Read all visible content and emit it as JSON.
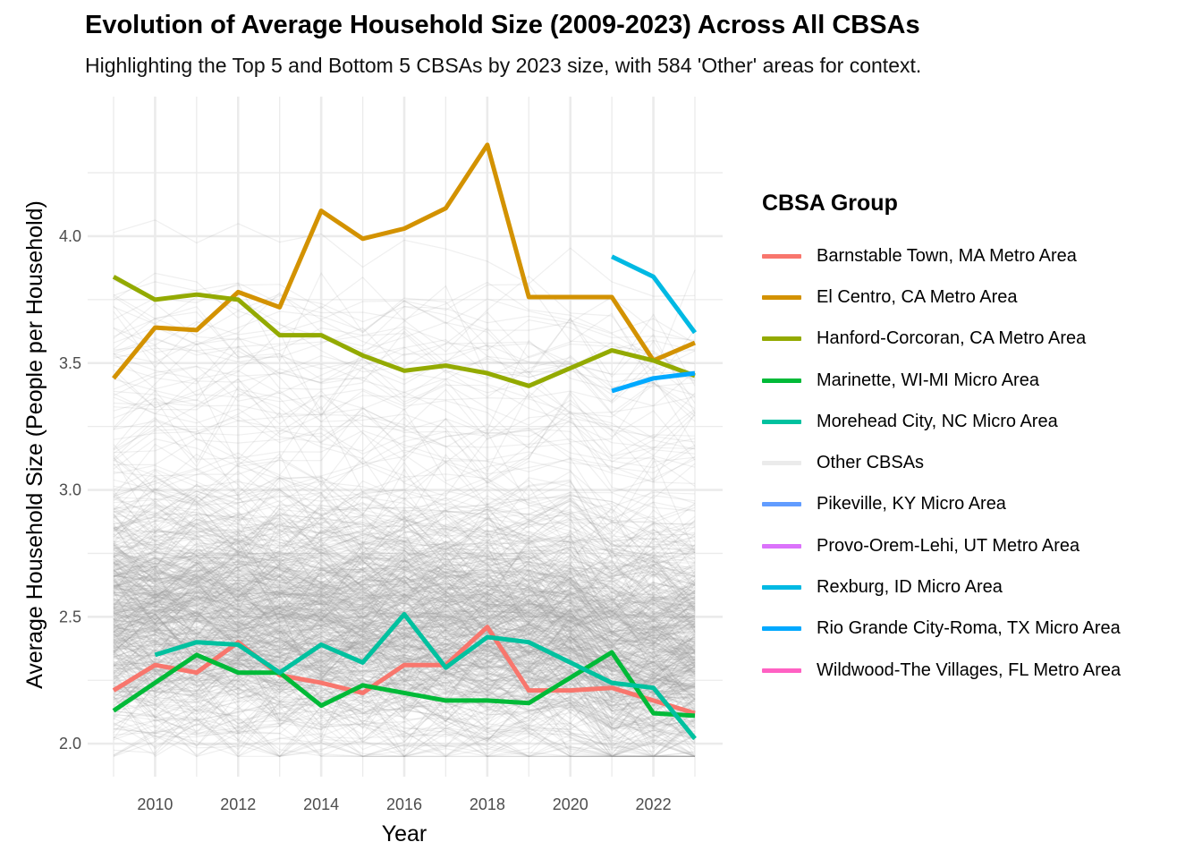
{
  "chart_data": {
    "type": "line",
    "title": "Evolution of Average Household Size (2009-2023) Across All CBSAs",
    "subtitle": "Highlighting the Top 5 and Bottom 5 CBSAs by 2023 size, with 584 'Other' areas for context.",
    "xlabel": "Year",
    "ylabel": "Average Household Size (People per Household)",
    "xlim": [
      2009,
      2023
    ],
    "ylim": [
      1.87,
      4.55
    ],
    "x_ticks": [
      2010,
      2012,
      2014,
      2016,
      2018,
      2020,
      2022
    ],
    "y_ticks": [
      2.0,
      2.5,
      3.0,
      3.5,
      4.0
    ],
    "y_tick_labels": [
      "2.0",
      "2.5",
      "3.0",
      "3.5",
      "4.0"
    ],
    "grid": true,
    "legend": {
      "title": "CBSA Group",
      "position": "right",
      "items": [
        {
          "name": "Barnstable Town, MA Metro Area",
          "color": "#F8766D"
        },
        {
          "name": "El Centro, CA Metro Area",
          "color": "#D39200"
        },
        {
          "name": "Hanford-Corcoran, CA Metro Area",
          "color": "#93AA00"
        },
        {
          "name": "Marinette, WI-MI Micro Area",
          "color": "#00BA38"
        },
        {
          "name": "Morehead City, NC Micro Area",
          "color": "#00C19F"
        },
        {
          "name": "Other CBSAs",
          "color": "#EBEBEB"
        },
        {
          "name": "Pikeville, KY Micro Area",
          "color": "#619CFF"
        },
        {
          "name": "Provo-Orem-Lehi, UT Metro Area",
          "color": "#DB72FB"
        },
        {
          "name": "Rexburg, ID Micro Area",
          "color": "#00B9E3"
        },
        {
          "name": "Rio Grande City-Roma, TX Micro Area",
          "color": "#00A9FF"
        },
        {
          "name": "Wildwood-The Villages, FL Metro Area",
          "color": "#FF61C3"
        }
      ]
    },
    "other_series": {
      "name": "Other CBSAs",
      "count": 584,
      "color": "#9a9a9a"
    },
    "series": [
      {
        "name": "Barnstable Town, MA Metro Area",
        "color": "#F8766D",
        "x": [
          2009,
          2010,
          2011,
          2012,
          2013,
          2014,
          2015,
          2016,
          2017,
          2018,
          2019,
          2020,
          2021,
          2022,
          2023
        ],
        "y": [
          2.21,
          2.31,
          2.28,
          2.4,
          2.27,
          2.24,
          2.2,
          2.31,
          2.31,
          2.46,
          2.21,
          2.21,
          2.22,
          2.17,
          2.12
        ]
      },
      {
        "name": "El Centro, CA Metro Area",
        "color": "#D39200",
        "x": [
          2009,
          2010,
          2011,
          2012,
          2013,
          2014,
          2015,
          2016,
          2017,
          2018,
          2019,
          2020,
          2021,
          2022,
          2023
        ],
        "y": [
          3.44,
          3.64,
          3.63,
          3.78,
          3.72,
          4.1,
          3.99,
          4.03,
          4.11,
          4.36,
          3.76,
          3.76,
          3.76,
          3.51,
          3.58
        ]
      },
      {
        "name": "Hanford-Corcoran, CA Metro Area",
        "color": "#93AA00",
        "x": [
          2009,
          2010,
          2011,
          2012,
          2013,
          2014,
          2015,
          2016,
          2017,
          2018,
          2019,
          2020,
          2021,
          2022,
          2023
        ],
        "y": [
          3.84,
          3.75,
          3.77,
          3.75,
          3.61,
          3.61,
          3.53,
          3.47,
          3.49,
          3.46,
          3.41,
          3.48,
          3.55,
          3.51,
          3.45
        ]
      },
      {
        "name": "Marinette, WI-MI Micro Area",
        "color": "#00BA38",
        "x": [
          2009,
          2010,
          2011,
          2012,
          2013,
          2014,
          2015,
          2016,
          2017,
          2018,
          2019,
          2020,
          2021,
          2022,
          2023
        ],
        "y": [
          2.13,
          2.24,
          2.35,
          2.28,
          2.28,
          2.15,
          2.23,
          2.2,
          2.17,
          2.17,
          2.16,
          2.26,
          2.36,
          2.12,
          2.11
        ]
      },
      {
        "name": "Morehead City, NC Micro Area",
        "color": "#00C19F",
        "x": [
          2010,
          2011,
          2012,
          2013,
          2014,
          2015,
          2016,
          2017,
          2018,
          2019,
          2020,
          2021,
          2022,
          2023
        ],
        "y": [
          2.35,
          2.4,
          2.39,
          2.28,
          2.39,
          2.32,
          2.51,
          2.3,
          2.42,
          2.4,
          2.32,
          2.24,
          2.22,
          2.02
        ]
      },
      {
        "name": "Rexburg, ID Micro Area",
        "color": "#00B9E3",
        "x": [
          2021,
          2022,
          2023
        ],
        "y": [
          3.92,
          3.84,
          3.62
        ]
      },
      {
        "name": "Rio Grande City-Roma, TX Micro Area",
        "color": "#00A9FF",
        "x": [
          2021,
          2022,
          2023
        ],
        "y": [
          3.39,
          3.44,
          3.46
        ]
      }
    ]
  }
}
